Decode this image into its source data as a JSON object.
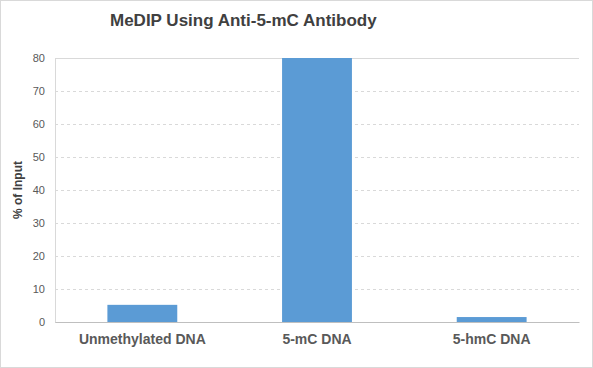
{
  "chart_data": {
    "type": "bar",
    "title": "MeDIP Using Anti-5-mC Antibody",
    "y_label": "% of Input",
    "categories": [
      "Unmethylated DNA",
      "5-mC DNA",
      "5-hmC DNA"
    ],
    "values": [
      5.2,
      80,
      1.5
    ],
    "color": "#5b9bd5",
    "ylim": [
      0,
      80
    ],
    "yticks": [
      0,
      10,
      20,
      30,
      40,
      50,
      60,
      70,
      80
    ],
    "grid": true
  }
}
